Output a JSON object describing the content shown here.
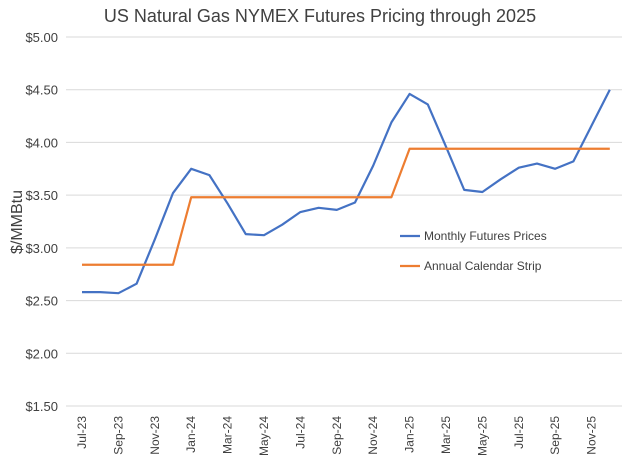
{
  "chart_data": {
    "type": "line",
    "title": "US Natural Gas NYMEX Futures Pricing through 2025",
    "xlabel": "",
    "ylabel": "$/MMBtu",
    "ylim": [
      1.5,
      5.0
    ],
    "y_ticks": [
      "$1.50",
      "$2.00",
      "$2.50",
      "$3.00",
      "$3.50",
      "$4.00",
      "$4.50",
      "$5.00"
    ],
    "y_tick_values": [
      1.5,
      2.0,
      2.5,
      3.0,
      3.5,
      4.0,
      4.5,
      5.0
    ],
    "grid": "horizontal",
    "legend_position": "right-center",
    "x": [
      "Jul-23",
      "Aug-23",
      "Sep-23",
      "Oct-23",
      "Nov-23",
      "Dec-23",
      "Jan-24",
      "Feb-24",
      "Mar-24",
      "Apr-24",
      "May-24",
      "Jun-24",
      "Jul-24",
      "Aug-24",
      "Sep-24",
      "Oct-24",
      "Nov-24",
      "Dec-24",
      "Jan-25",
      "Feb-25",
      "Mar-25",
      "Apr-25",
      "May-25",
      "Jun-25",
      "Jul-25",
      "Aug-25",
      "Sep-25",
      "Oct-25",
      "Nov-25",
      "Dec-25"
    ],
    "x_tick_labels": [
      "Jul-23",
      "Sep-23",
      "Nov-23",
      "Jan-24",
      "Mar-24",
      "May-24",
      "Jul-24",
      "Sep-24",
      "Nov-24",
      "Jan-25",
      "Mar-25",
      "May-25",
      "Jul-25",
      "Sep-25",
      "Nov-25"
    ],
    "series": [
      {
        "name": "Monthly Futures Prices",
        "color": "#4472C4",
        "values": [
          2.58,
          2.58,
          2.57,
          2.66,
          3.08,
          3.52,
          3.75,
          3.69,
          3.42,
          3.13,
          3.12,
          3.22,
          3.34,
          3.38,
          3.36,
          3.43,
          3.78,
          4.19,
          4.46,
          4.36,
          3.96,
          3.55,
          3.53,
          3.65,
          3.76,
          3.8,
          3.75,
          3.82,
          4.16,
          4.5
        ]
      },
      {
        "name": "Annual Calendar Strip",
        "color": "#ED7D31",
        "values": [
          2.84,
          2.84,
          2.84,
          2.84,
          2.84,
          2.84,
          3.48,
          3.48,
          3.48,
          3.48,
          3.48,
          3.48,
          3.48,
          3.48,
          3.48,
          3.48,
          3.48,
          3.48,
          3.94,
          3.94,
          3.94,
          3.94,
          3.94,
          3.94,
          3.94,
          3.94,
          3.94,
          3.94,
          3.94,
          3.94
        ],
        "step": true
      }
    ]
  }
}
